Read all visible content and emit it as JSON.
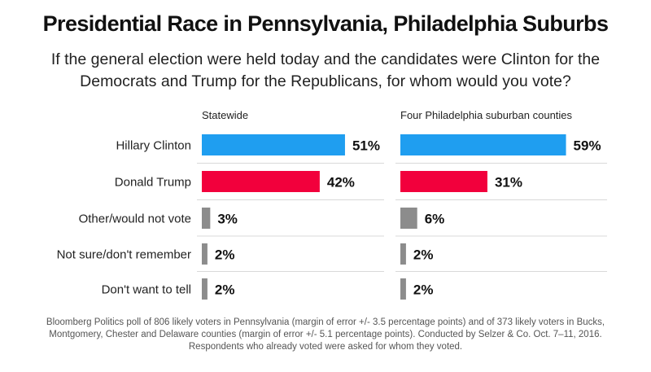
{
  "chart_data": {
    "type": "bar",
    "title": "Presidential Race in Pennsylvania, Philadelphia Suburbs",
    "subtitle": "If the general election were held today and the candidates were Clinton for the Democrats and Trump for the Republicans, for whom would you vote?",
    "categories": [
      "Hillary Clinton",
      "Donald Trump",
      "Other/would not vote",
      "Not sure/don't remember",
      "Don't want to tell"
    ],
    "series": [
      {
        "name": "Statewide",
        "values": [
          51,
          42,
          3,
          2,
          2
        ]
      },
      {
        "name": "Four Philadelphia suburban counties",
        "values": [
          59,
          31,
          6,
          2,
          2
        ]
      }
    ],
    "value_suffix": "%",
    "bar_colors": [
      "#1f9ef0",
      "#f2003c",
      "#8c8c8c",
      "#8c8c8c",
      "#8c8c8c"
    ],
    "footnote": "Bloomberg Politics poll of 806 likely voters in Pennsylvania (margin of error +/- 3.5 percentage points) and of 373 likely voters in Bucks, Montgomery, Chester and Delaware counties (margin of error +/- 5.1 percentage points). Conducted by Selzer & Co. Oct. 7–11, 2016.  Respondents who already voted were asked for whom they voted."
  }
}
